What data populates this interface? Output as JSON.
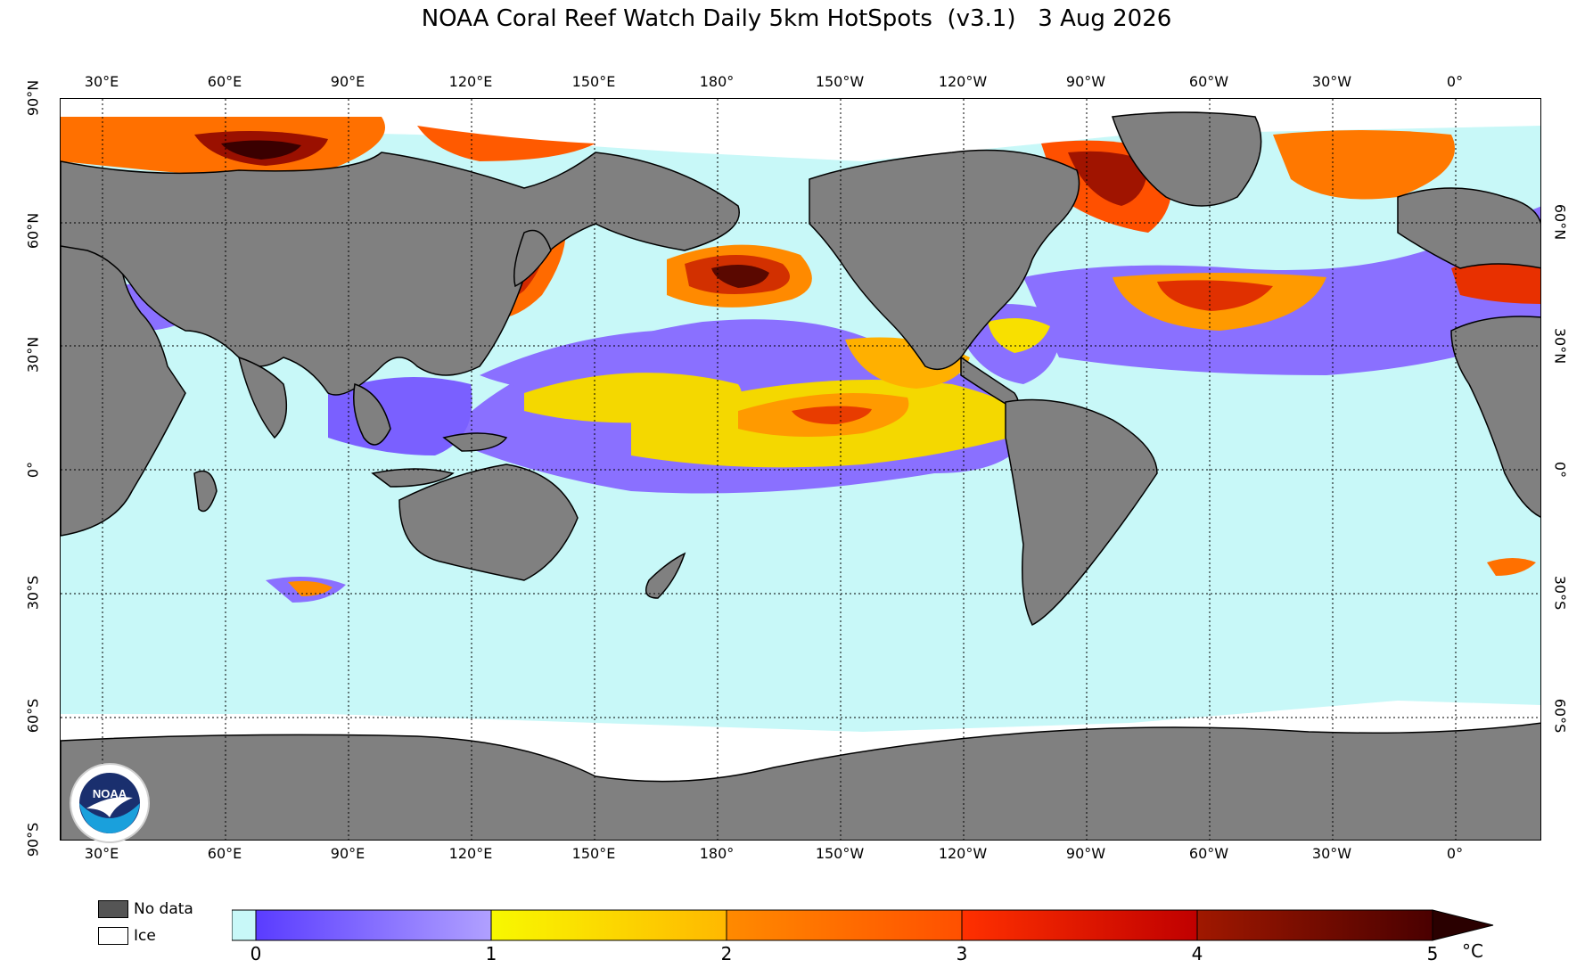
{
  "title": "NOAA Coral Reef Watch Daily 5km HotSpots  (v3.1)   3 Aug 2026",
  "longitude_labels": [
    "30°E",
    "60°E",
    "90°E",
    "120°E",
    "150°E",
    "180°",
    "150°W",
    "120°W",
    "90°W",
    "60°W",
    "30°W",
    "0°"
  ],
  "latitude_labels_left": [
    "90°N",
    "60°N",
    "30°N",
    "0°",
    "30°S",
    "60°S",
    "90°S"
  ],
  "latitude_labels_right": [
    "60°N",
    "30°N",
    "0°",
    "30°S",
    "60°S"
  ],
  "legend": {
    "no_data_label": "No data",
    "ice_label": "Ice",
    "no_data_color": "#808080",
    "ice_color": "#ffffff"
  },
  "colorbar": {
    "ticks": [
      "0",
      "1",
      "2",
      "3",
      "4",
      "5"
    ],
    "unit": "°C",
    "colors": [
      "#c8f8f8",
      "#5a3cff",
      "#9a88ff",
      "#f8f800",
      "#ffb800",
      "#ff7a00",
      "#ff3c00",
      "#cc0000",
      "#8a1000",
      "#3a0000"
    ]
  },
  "colors": {
    "land": "#808080",
    "ocean_zero": "#c8f8f8",
    "ice": "#ffffff",
    "coast": "#000000"
  },
  "logo": {
    "text": "NOAA",
    "ring_text": "NATIONAL OCEANIC AND ATMOSPHERIC ADMINISTRATION · U.S. DEPARTMENT OF COMMERCE"
  }
}
